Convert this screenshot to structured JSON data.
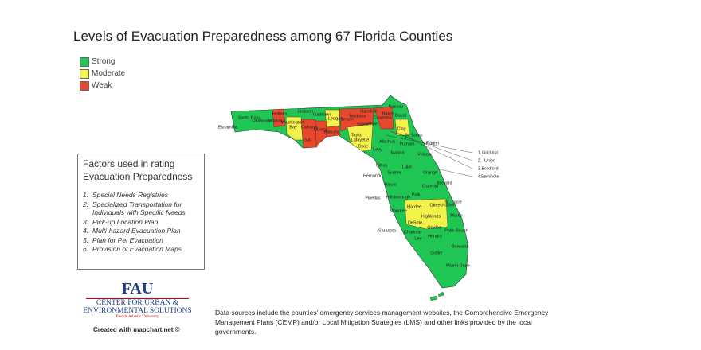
{
  "title": "Levels of Evacuation Preparedness among 67 Florida Counties",
  "legend": [
    {
      "label": "Strong",
      "color": "#1fc653"
    },
    {
      "label": "Moderate",
      "color": "#f3f24a"
    },
    {
      "label": "Weak",
      "color": "#e8472c"
    }
  ],
  "factors": {
    "title": "Factors used in rating Evacuation Preparedness",
    "items": [
      {
        "number": "1.",
        "text": "Special Needs Registries"
      },
      {
        "number": "2.",
        "text": "Specialized Transportation for Individuals with Specific Needs"
      },
      {
        "number": "3.",
        "text": "Pick-up Location Plan"
      },
      {
        "number": "4.",
        "text": "Multi-hazard Evacuation Plan"
      },
      {
        "number": "5.",
        "text": "Plan for Pet Evacuation"
      },
      {
        "number": "6.",
        "text": "Provision of Evacuation Maps"
      }
    ]
  },
  "map": {
    "county_labels": [
      "Santa Rosa",
      "Okaloosa",
      "Walton",
      "Holmes",
      "Washington",
      "Jackson",
      "Bay",
      "Calhoun",
      "Gulf",
      "Liberty",
      "Gadsden",
      "Leon",
      "Wakulla",
      "Jefferson",
      "Madison",
      "Taylor",
      "Hamilton",
      "Suwannee",
      "Lafayette",
      "Dixie",
      "Columbia",
      "Baker",
      "Nassau",
      "Duval",
      "Clay",
      "St. Johns",
      "Putnam",
      "Alachua",
      "Levy",
      "Marion",
      "Volusia",
      "Citrus",
      "Lake",
      "Sumter",
      "Pasco",
      "Orange",
      "Hillsborough",
      "Polk",
      "Osceola",
      "Brevard",
      "Manatee",
      "Hardee",
      "Highlands",
      "Okeechobee",
      "St. Lucie",
      "Martin",
      "DeSoto",
      "Charlotte",
      "Glades",
      "Lee",
      "Hendry",
      "Palm Beach",
      "Collier",
      "Broward",
      "Miami-Dade"
    ],
    "outside_labels": [
      "Escambia",
      "Hernando",
      "Pinellas",
      "Sarasota",
      "Flagler"
    ],
    "callouts": [
      {
        "number": "1.",
        "name": "Gilchrist"
      },
      {
        "number": "2.",
        "name": "Union"
      },
      {
        "number": "3.",
        "name": "Bradford"
      },
      {
        "number": "4.",
        "name": "Seminole"
      }
    ]
  },
  "logo": {
    "mark": "FAU",
    "line1": "CENTER FOR URBAN &",
    "line2": "ENVIRONMENTAL SOLUTIONS",
    "line3": "Florida Atlantic University"
  },
  "credit": "Created with mapchart.net ©",
  "source_note": "Data sources include the counties’ emergency services management websites, the Comprehensive Emergency Management Plans (CEMP) and/or Local Mitigation Strategies (LMS) and other links provided by the local governments."
}
